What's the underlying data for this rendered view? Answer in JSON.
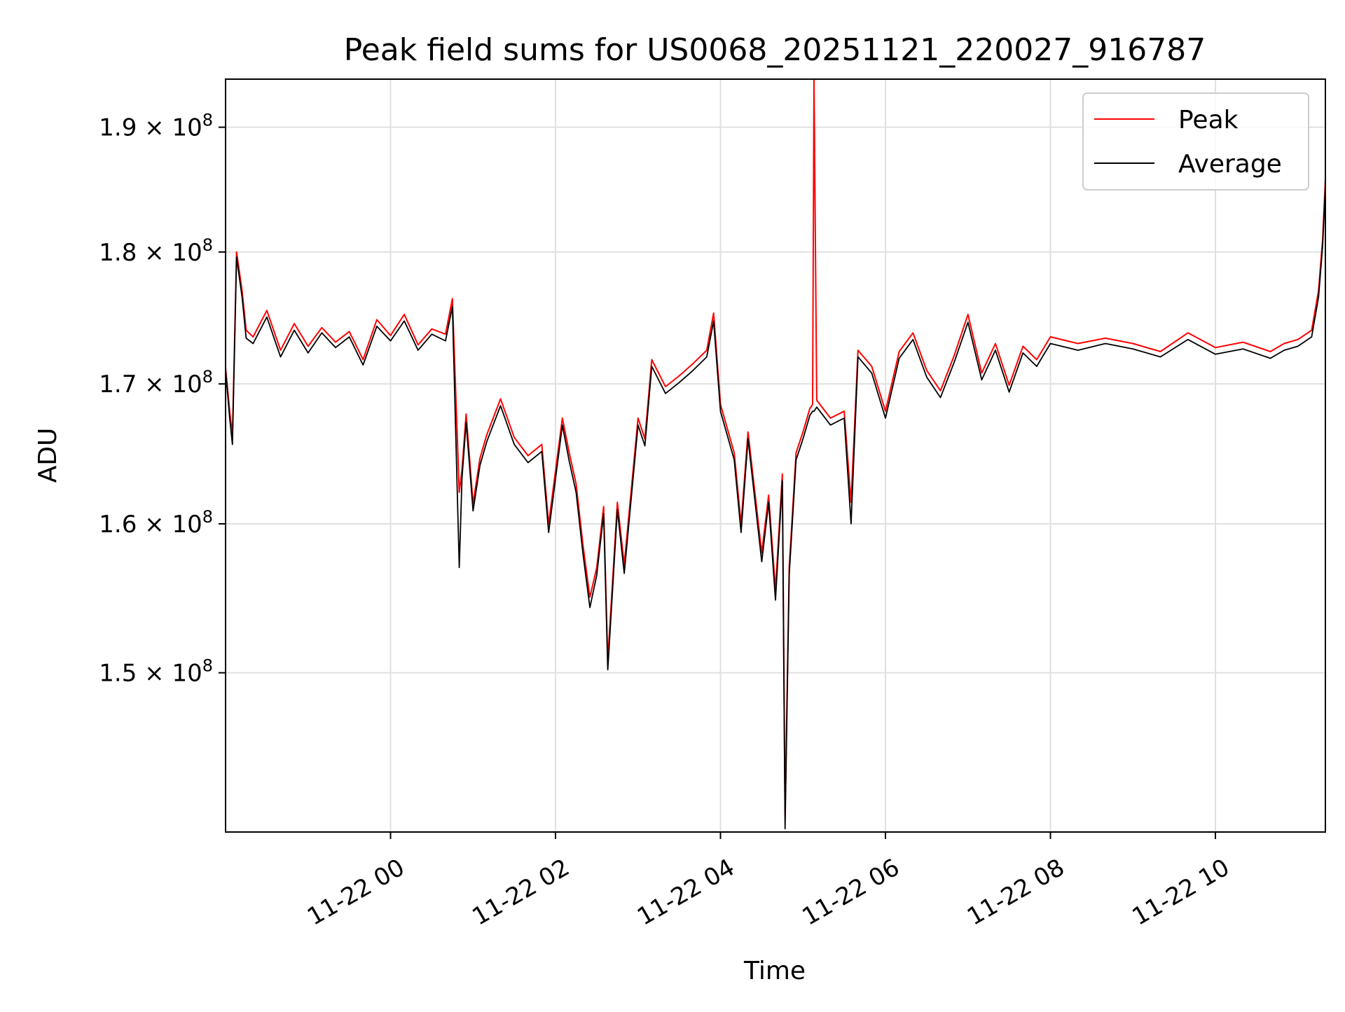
{
  "chart_data": {
    "type": "line",
    "title": "Peak field sums for US0068_20251121_220027_916787",
    "xlabel": "Time",
    "ylabel": "ADU",
    "yscale": "log",
    "xlim": [
      "2025-11-21 22:00",
      "2025-11-22 11:20"
    ],
    "ylim": [
      140000000,
      194000000
    ],
    "x_ticks": [
      {
        "label": "11-22 00",
        "value": "2025-11-22 00:00"
      },
      {
        "label": "11-22 02",
        "value": "2025-11-22 02:00"
      },
      {
        "label": "11-22 04",
        "value": "2025-11-22 04:00"
      },
      {
        "label": "11-22 06",
        "value": "2025-11-22 06:00"
      },
      {
        "label": "11-22 08",
        "value": "2025-11-22 08:00"
      },
      {
        "label": "11-22 10",
        "value": "2025-11-22 10:00"
      }
    ],
    "y_ticks": [
      {
        "mantissa": "1.9",
        "times": "×",
        "base": "10",
        "exp": "8",
        "value": 190000000
      },
      {
        "mantissa": "1.8",
        "times": "×",
        "base": "10",
        "exp": "8",
        "value": 180000000
      },
      {
        "mantissa": "1.7",
        "times": "×",
        "base": "10",
        "exp": "8",
        "value": 170000000
      },
      {
        "mantissa": "1.6",
        "times": "×",
        "base": "10",
        "exp": "8",
        "value": 160000000
      },
      {
        "mantissa": "1.5",
        "times": "×",
        "base": "10",
        "exp": "8",
        "value": 150000000
      }
    ],
    "grid": true,
    "legend_position": "top-right",
    "series": [
      {
        "name": "Peak",
        "color": "#ff0000",
        "x": [
          "2025-11-21 22:00",
          "2025-11-21 22:03",
          "2025-11-21 22:05",
          "2025-11-21 22:08",
          "2025-11-21 22:12",
          "2025-11-21 22:15",
          "2025-11-21 22:20",
          "2025-11-21 22:30",
          "2025-11-21 22:40",
          "2025-11-21 22:50",
          "2025-11-21 23:00",
          "2025-11-21 23:10",
          "2025-11-21 23:20",
          "2025-11-21 23:30",
          "2025-11-21 23:40",
          "2025-11-21 23:50",
          "2025-11-22 00:00",
          "2025-11-22 00:10",
          "2025-11-22 00:20",
          "2025-11-22 00:30",
          "2025-11-22 00:40",
          "2025-11-22 00:45",
          "2025-11-22 00:50",
          "2025-11-22 00:52",
          "2025-11-22 00:55",
          "2025-11-22 01:00",
          "2025-11-22 01:05",
          "2025-11-22 01:10",
          "2025-11-22 01:20",
          "2025-11-22 01:30",
          "2025-11-22 01:40",
          "2025-11-22 01:50",
          "2025-11-22 01:55",
          "2025-11-22 02:05",
          "2025-11-22 02:10",
          "2025-11-22 02:15",
          "2025-11-22 02:20",
          "2025-11-22 02:25",
          "2025-11-22 02:30",
          "2025-11-22 02:35",
          "2025-11-22 02:38",
          "2025-11-22 02:45",
          "2025-11-22 02:50",
          "2025-11-22 03:00",
          "2025-11-22 03:05",
          "2025-11-22 03:10",
          "2025-11-22 03:20",
          "2025-11-22 03:30",
          "2025-11-22 03:40",
          "2025-11-22 03:50",
          "2025-11-22 03:55",
          "2025-11-22 04:00",
          "2025-11-22 04:10",
          "2025-11-22 04:15",
          "2025-11-22 04:20",
          "2025-11-22 04:30",
          "2025-11-22 04:35",
          "2025-11-22 04:40",
          "2025-11-22 04:45",
          "2025-11-22 04:47",
          "2025-11-22 04:50",
          "2025-11-22 04:55",
          "2025-11-22 05:00",
          "2025-11-22 05:05",
          "2025-11-22 05:07",
          "2025-11-22 05:08",
          "2025-11-22 05:10",
          "2025-11-22 05:20",
          "2025-11-22 05:30",
          "2025-11-22 05:35",
          "2025-11-22 05:40",
          "2025-11-22 05:50",
          "2025-11-22 06:00",
          "2025-11-22 06:10",
          "2025-11-22 06:20",
          "2025-11-22 06:30",
          "2025-11-22 06:40",
          "2025-11-22 06:50",
          "2025-11-22 07:00",
          "2025-11-22 07:10",
          "2025-11-22 07:20",
          "2025-11-22 07:30",
          "2025-11-22 07:40",
          "2025-11-22 07:50",
          "2025-11-22 08:00",
          "2025-11-22 08:20",
          "2025-11-22 08:40",
          "2025-11-22 09:00",
          "2025-11-22 09:20",
          "2025-11-22 09:40",
          "2025-11-22 10:00",
          "2025-11-22 10:20",
          "2025-11-22 10:40",
          "2025-11-22 10:50",
          "2025-11-22 11:00",
          "2025-11-22 11:10",
          "2025-11-22 11:15",
          "2025-11-22 11:18",
          "2025-11-22 11:20"
        ],
        "values": [
          171200000,
          168000000,
          166200000,
          180000000,
          177000000,
          174000000,
          173500000,
          175500000,
          172500000,
          174500000,
          172800000,
          174200000,
          173100000,
          173900000,
          171800000,
          174800000,
          173600000,
          175200000,
          172900000,
          174100000,
          173700000,
          176400000,
          162200000,
          163800000,
          167800000,
          161400000,
          164600000,
          166300000,
          168900000,
          166100000,
          164800000,
          165600000,
          160000000,
          167500000,
          165000000,
          162800000,
          158500000,
          155000000,
          157000000,
          161200000,
          150800000,
          161500000,
          157200000,
          167500000,
          166000000,
          171800000,
          169800000,
          170600000,
          171500000,
          172500000,
          175300000,
          168500000,
          165000000,
          160000000,
          166500000,
          158000000,
          162000000,
          155500000,
          163500000,
          141000000,
          157000000,
          165000000,
          166500000,
          168200000,
          168500000,
          194000000,
          168800000,
          167500000,
          168000000,
          161500000,
          172500000,
          171300000,
          168000000,
          172400000,
          173800000,
          171000000,
          169500000,
          172100000,
          175200000,
          170800000,
          173000000,
          169900000,
          172800000,
          171800000,
          173500000,
          173000000,
          173400000,
          173000000,
          172400000,
          173800000,
          172700000,
          173100000,
          172400000,
          173000000,
          173300000,
          174000000,
          177000000,
          181000000,
          185800000
        ]
      },
      {
        "name": "Average",
        "color": "#000000",
        "x": [
          "2025-11-21 22:00",
          "2025-11-21 22:03",
          "2025-11-21 22:05",
          "2025-11-21 22:08",
          "2025-11-21 22:12",
          "2025-11-21 22:15",
          "2025-11-21 22:20",
          "2025-11-21 22:30",
          "2025-11-21 22:40",
          "2025-11-21 22:50",
          "2025-11-21 23:00",
          "2025-11-21 23:10",
          "2025-11-21 23:20",
          "2025-11-21 23:30",
          "2025-11-21 23:40",
          "2025-11-21 23:50",
          "2025-11-22 00:00",
          "2025-11-22 00:10",
          "2025-11-22 00:20",
          "2025-11-22 00:30",
          "2025-11-22 00:40",
          "2025-11-22 00:45",
          "2025-11-22 00:50",
          "2025-11-22 00:52",
          "2025-11-22 00:55",
          "2025-11-22 01:00",
          "2025-11-22 01:05",
          "2025-11-22 01:10",
          "2025-11-22 01:20",
          "2025-11-22 01:30",
          "2025-11-22 01:40",
          "2025-11-22 01:50",
          "2025-11-22 01:55",
          "2025-11-22 02:05",
          "2025-11-22 02:10",
          "2025-11-22 02:15",
          "2025-11-22 02:20",
          "2025-11-22 02:25",
          "2025-11-22 02:30",
          "2025-11-22 02:35",
          "2025-11-22 02:38",
          "2025-11-22 02:45",
          "2025-11-22 02:50",
          "2025-11-22 03:00",
          "2025-11-22 03:05",
          "2025-11-22 03:10",
          "2025-11-22 03:20",
          "2025-11-22 03:30",
          "2025-11-22 03:40",
          "2025-11-22 03:50",
          "2025-11-22 03:55",
          "2025-11-22 04:00",
          "2025-11-22 04:10",
          "2025-11-22 04:15",
          "2025-11-22 04:20",
          "2025-11-22 04:30",
          "2025-11-22 04:35",
          "2025-11-22 04:40",
          "2025-11-22 04:45",
          "2025-11-22 04:47",
          "2025-11-22 04:50",
          "2025-11-22 04:55",
          "2025-11-22 05:00",
          "2025-11-22 05:05",
          "2025-11-22 05:07",
          "2025-11-22 05:08",
          "2025-11-22 05:10",
          "2025-11-22 05:20",
          "2025-11-22 05:30",
          "2025-11-22 05:35",
          "2025-11-22 05:40",
          "2025-11-22 05:50",
          "2025-11-22 06:00",
          "2025-11-22 06:10",
          "2025-11-22 06:20",
          "2025-11-22 06:30",
          "2025-11-22 06:40",
          "2025-11-22 06:50",
          "2025-11-22 07:00",
          "2025-11-22 07:10",
          "2025-11-22 07:20",
          "2025-11-22 07:30",
          "2025-11-22 07:40",
          "2025-11-22 07:50",
          "2025-11-22 08:00",
          "2025-11-22 08:20",
          "2025-11-22 08:40",
          "2025-11-22 09:00",
          "2025-11-22 09:20",
          "2025-11-22 09:40",
          "2025-11-22 10:00",
          "2025-11-22 10:20",
          "2025-11-22 10:40",
          "2025-11-22 10:50",
          "2025-11-22 11:00",
          "2025-11-22 11:10",
          "2025-11-22 11:15",
          "2025-11-22 11:18",
          "2025-11-22 11:20"
        ],
        "values": [
          171000000,
          167500000,
          165600000,
          179600000,
          176500000,
          173400000,
          173000000,
          175000000,
          172000000,
          174000000,
          172300000,
          173800000,
          172700000,
          173500000,
          171400000,
          174300000,
          173200000,
          174700000,
          172500000,
          173700000,
          173200000,
          175800000,
          157000000,
          163200000,
          167200000,
          160900000,
          164100000,
          165800000,
          168400000,
          165600000,
          164300000,
          165100000,
          159400000,
          167000000,
          164400000,
          162200000,
          157900000,
          154300000,
          156500000,
          160700000,
          150200000,
          161000000,
          156600000,
          167000000,
          165500000,
          171300000,
          169300000,
          170100000,
          171000000,
          172000000,
          174700000,
          168000000,
          164500000,
          159400000,
          166000000,
          157400000,
          161500000,
          154800000,
          163000000,
          140200000,
          156500000,
          164500000,
          166000000,
          167700000,
          168000000,
          168000000,
          168300000,
          167000000,
          167500000,
          160000000,
          172000000,
          170800000,
          167500000,
          171900000,
          173300000,
          170500000,
          169000000,
          171600000,
          174600000,
          170300000,
          172500000,
          169400000,
          172300000,
          171300000,
          173000000,
          172500000,
          173000000,
          172600000,
          172000000,
          173300000,
          172200000,
          172600000,
          171900000,
          172500000,
          172800000,
          173500000,
          176500000,
          180500000,
          185200000
        ]
      }
    ]
  }
}
